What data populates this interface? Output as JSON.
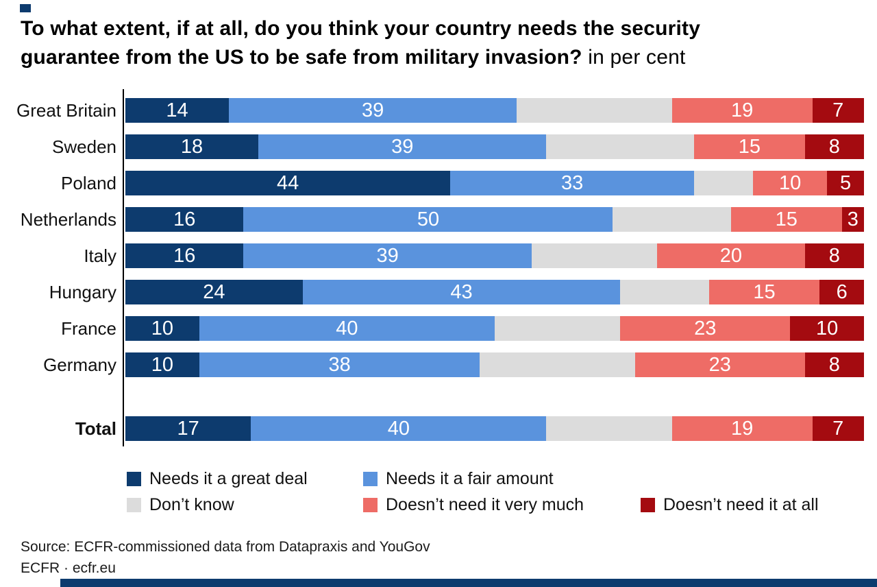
{
  "title": {
    "line1": "To what extent, if at all, do you think your country needs the security",
    "line2": "guarantee from the US to be safe from military invasion?",
    "subtitle": "in per cent"
  },
  "source": {
    "line1": "Source: ECFR-commissioned data from Datapraxis and YouGov",
    "line2": "ECFR · ecfr.eu"
  },
  "colors": {
    "navy": "#0d3b6e",
    "blue": "#5a93dd",
    "gray": "#dcdcdc",
    "salmon": "#ee6c66",
    "dark_red": "#a40b10",
    "value_label": "#ffffff",
    "brand_navy": "#0d3b6e"
  },
  "chart_data": {
    "type": "bar",
    "stacked": true,
    "orientation": "horizontal",
    "title": "To what extent, if at all, do you think your country needs the security guarantee from the US to be safe from military invasion?",
    "subtitle": "in per cent",
    "xlim": [
      0,
      100
    ],
    "grid": false,
    "legend_position": "bottom",
    "categories": [
      "Great Britain",
      "Sweden",
      "Poland",
      "Netherlands",
      "Italy",
      "Hungary",
      "France",
      "Germany",
      "Total"
    ],
    "series": [
      {
        "name": "Needs it a great deal",
        "color": "#0d3b6e",
        "show_labels": true,
        "values": [
          14,
          18,
          44,
          16,
          16,
          24,
          10,
          10,
          17
        ]
      },
      {
        "name": "Needs it a fair amount",
        "color": "#5a93dd",
        "show_labels": true,
        "values": [
          39,
          39,
          33,
          50,
          39,
          43,
          40,
          38,
          40
        ]
      },
      {
        "name": "Don’t know",
        "color": "#dcdcdc",
        "show_labels": false,
        "values": [
          21,
          20,
          8,
          16,
          17,
          12,
          17,
          21,
          17
        ]
      },
      {
        "name": "Doesn’t need it very much",
        "color": "#ee6c66",
        "show_labels": true,
        "values": [
          19,
          15,
          10,
          15,
          20,
          15,
          23,
          23,
          19
        ]
      },
      {
        "name": "Doesn’t need it at all",
        "color": "#a40b10",
        "show_labels": true,
        "values": [
          7,
          8,
          5,
          3,
          8,
          6,
          10,
          8,
          7
        ]
      }
    ],
    "value_labels_note": "white numbers centered in each segment; no labels on Don’t know segments"
  }
}
